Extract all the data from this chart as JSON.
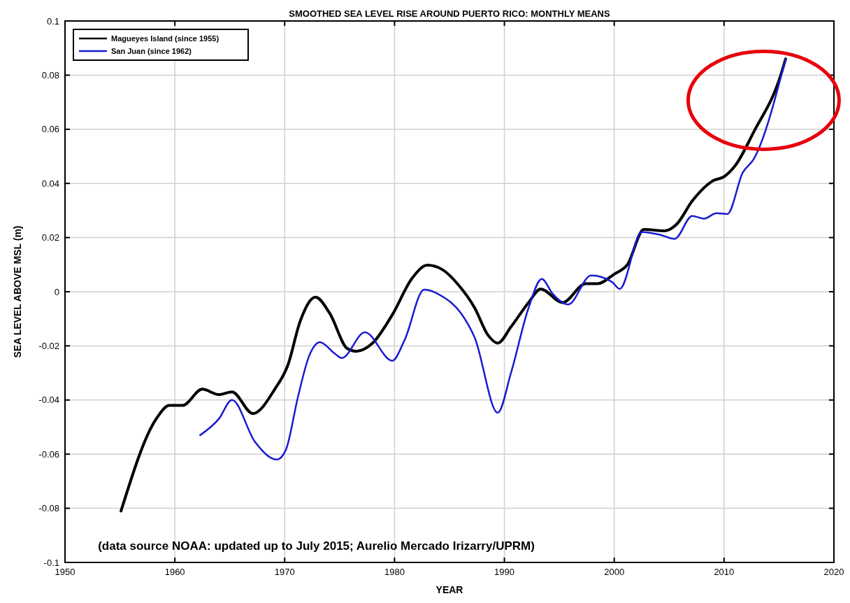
{
  "chart_data": {
    "type": "line",
    "title": "SMOOTHED SEA LEVEL RISE AROUND PUERTO RICO: MONTHLY MEANS",
    "xlabel": "YEAR",
    "ylabel": "SEA LEVEL ABOVE MSL (m)",
    "annotations": [
      "(data source NOAA: updated up to July 2015; Aurelio Mercado Irizarry/UPRM)"
    ],
    "xlim": [
      1950,
      2020
    ],
    "xticks": [
      1950,
      1960,
      1970,
      1980,
      1990,
      2000,
      2010,
      2020
    ],
    "ylim": [
      -0.1,
      0.1
    ],
    "yticks": [
      -0.1,
      -0.08,
      -0.06,
      -0.04,
      -0.02,
      0,
      0.02,
      0.04,
      0.06,
      0.08,
      0.1
    ],
    "grid": true,
    "legend": "top left",
    "line_style": "solid",
    "marker": "none",
    "series": [
      {
        "name": "Magueyes Island (since 1955)",
        "color": "#000000",
        "x": [
          1955.1,
          1958.3,
          1959.5,
          1960.7,
          1962.5,
          1964.0,
          1965.2,
          1967.1,
          1969.1,
          1970.3,
          1971.4,
          1972.8,
          1974.1,
          1975.7,
          1976.5,
          1978.0,
          1979.8,
          1981.6,
          1983.0,
          1984.3,
          1985.8,
          1987.3,
          1988.5,
          1989.4,
          1990.6,
          1992.2,
          1993.3,
          1995.3,
          1997.4,
          1998.5,
          2000.0,
          2001.2,
          2002.7,
          2004.6,
          2005.7,
          2007.1,
          2009.0,
          2010.0,
          2011.0,
          2012.7,
          2015.2,
          2015.6
        ],
        "values": [
          -0.081,
          -0.047,
          -0.042,
          -0.042,
          -0.036,
          -0.038,
          -0.037,
          -0.045,
          -0.036,
          -0.027,
          -0.011,
          -0.002,
          -0.008,
          -0.021,
          -0.022,
          -0.019,
          -0.0085,
          0.005,
          0.0098,
          0.0083,
          0.0026,
          -0.006,
          -0.016,
          -0.019,
          -0.013,
          -0.004,
          0.001,
          -0.004,
          0.003,
          0.003,
          0.0065,
          0.01,
          0.023,
          0.0225,
          0.025,
          0.0335,
          0.041,
          0.0425,
          0.0465,
          0.059,
          0.0805,
          0.086
        ]
      },
      {
        "name": "San Juan (since 1962)",
        "color": "#1a1ad2",
        "x": [
          1962.3,
          1964.0,
          1965.2,
          1967.3,
          1969.3,
          1970.1,
          1971.2,
          1972.2,
          1973.2,
          1974.6,
          1975.2,
          1977.3,
          1979.8,
          1980.9,
          1982.7,
          1984.3,
          1986.0,
          1987.3,
          1989.4,
          1990.6,
          1992.2,
          1993.4,
          1994.4,
          1995.8,
          1997.9,
          1999.8,
          2000.5,
          2002.5,
          2004.2,
          2005.5,
          2007.1,
          2008.2,
          2009.3,
          2010.3,
          2011.7,
          2012.7,
          2015.6
        ],
        "values": [
          -0.053,
          -0.047,
          -0.04,
          -0.0555,
          -0.062,
          -0.0585,
          -0.039,
          -0.024,
          -0.0187,
          -0.023,
          -0.0245,
          -0.015,
          -0.0255,
          -0.018,
          0.0008,
          -0.0016,
          -0.0077,
          -0.017,
          -0.0447,
          -0.03,
          -0.006,
          0.0047,
          -0.0008,
          -0.0047,
          0.006,
          0.0036,
          0.001,
          0.022,
          0.021,
          0.0195,
          0.028,
          0.027,
          0.029,
          0.0287,
          0.044,
          0.049,
          0.086
        ]
      }
    ]
  }
}
